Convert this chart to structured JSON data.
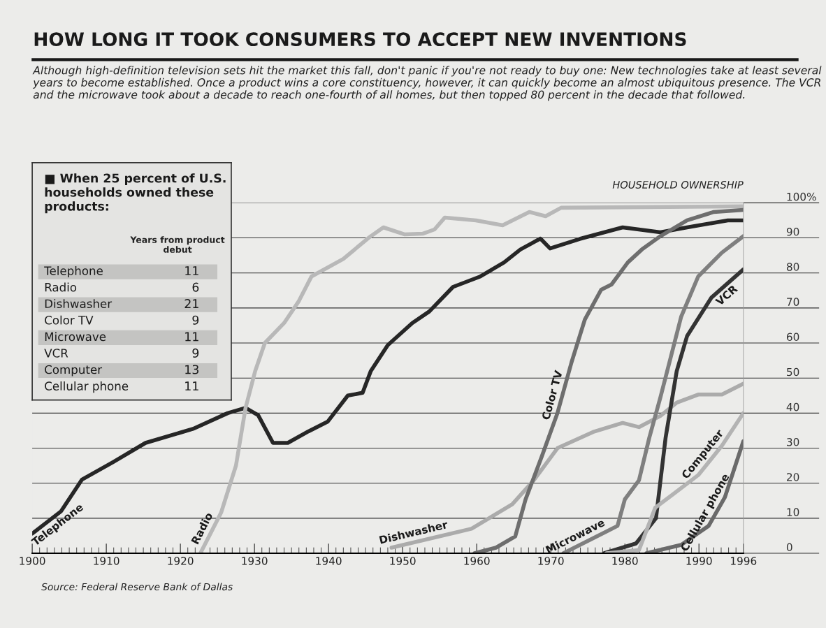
{
  "chart_data": [
    {
      "type": "line",
      "title": "HOW LONG IT TOOK CONSUMERS TO ACCEPT NEW INVENTIONS",
      "subtitle": "Although high-definition television sets hit the market this fall, don't panic if you're not ready to buy one: New technologies take at least several years to become established. Once a product wins a core constituency, however, it can quickly become an almost ubiquitous presence. The VCR and the microwave took about a decade to reach one-fourth of all homes, but then topped 80 percent in the decade that followed.",
      "ylabel": "HOUSEHOLD OWNERSHIP",
      "xlim": [
        1900,
        1996
      ],
      "xticks": [
        1900,
        1910,
        1920,
        1930,
        1940,
        1950,
        1960,
        1970,
        1980,
        1990,
        1996
      ],
      "ylim": [
        0,
        100
      ],
      "yticks": [
        0,
        10,
        20,
        30,
        40,
        50,
        60,
        70,
        80,
        90,
        {
          "value": 100,
          "label": "100%"
        }
      ],
      "grid": "y",
      "marker": "none",
      "line_style": "solid",
      "annotations": [
        "Source: Federal Reserve Bank of Dallas"
      ],
      "series": [
        {
          "name": "Telephone",
          "color": "#262626",
          "x": [
            1900,
            1903.9,
            1906.7,
            1910.9,
            1915.3,
            1921.7,
            1926.4,
            1928.8,
            1930.5,
            1932.5,
            1934.5,
            1937.3,
            1939.9,
            1942.6,
            1944.6,
            1945.7,
            1948,
            1951.3,
            1953.6,
            1956.8,
            1960.5,
            1963.7,
            1965.9,
            1968.6,
            1969.9,
            1973.9,
            1979.7,
            1984.8,
            1988.4,
            1993.9,
            1996
          ],
          "values": [
            5.6,
            12,
            21,
            26,
            31.5,
            35.5,
            40,
            41.5,
            39.4,
            31.5,
            31.5,
            34.8,
            37.6,
            45,
            45.8,
            52,
            59.4,
            65.7,
            69,
            76,
            79,
            83,
            86.7,
            89.8,
            87,
            89.7,
            93,
            91.6,
            93,
            95,
            95
          ]
        },
        {
          "name": "Radio",
          "color": "#b8b8b8",
          "x": [
            1922.7,
            1925.5,
            1927.5,
            1928.8,
            1930.1,
            1931.4,
            1934,
            1936,
            1937.7,
            1942,
            1945.4,
            1947.4,
            1950.3,
            1952.7,
            1954.3,
            1955.7,
            1959.9,
            1963.5,
            1967.1,
            1969.3,
            1971.4,
            1996
          ],
          "values": [
            0,
            11.6,
            25,
            41.5,
            52,
            60,
            65.7,
            72,
            79,
            84,
            90,
            93,
            91,
            91.2,
            92.4,
            95.8,
            95,
            93.6,
            97.4,
            96.2,
            98.6,
            99
          ]
        },
        {
          "name": "Dishwasher",
          "color": "#ababab",
          "x": [
            1948.5,
            1959.3,
            1964.8,
            1967.7,
            1970.9,
            1975.7,
            1979.7,
            1981.9,
            1984.8,
            1987,
            1989.9,
            1993.1,
            1996
          ],
          "values": [
            1.6,
            7,
            14,
            20.8,
            30,
            34.6,
            37.2,
            36,
            39.2,
            43,
            45.3,
            45.3,
            48.4
          ]
        },
        {
          "name": "Color TV",
          "color": "#6e6e6e",
          "x": [
            1959.7,
            1962.6,
            1965.2,
            1966.6,
            1968.8,
            1970.9,
            1972.8,
            1974.6,
            1976.8,
            1978.2,
            1980.4,
            1982.3,
            1984.8,
            1988.4,
            1992,
            1996
          ],
          "values": [
            0,
            1.6,
            4.8,
            15.4,
            27.7,
            40,
            54.5,
            66.7,
            75.2,
            76.7,
            83,
            86.7,
            90.5,
            95,
            97.4,
            98
          ]
        },
        {
          "name": "Microwave",
          "color": "#7f7f7f",
          "x": [
            1971.7,
            1979,
            1980,
            1981.9,
            1983.3,
            1984.8,
            1986.2,
            1987.6,
            1989.9,
            1993.1,
            1996
          ],
          "values": [
            0,
            7.8,
            15.4,
            20.8,
            33,
            44.5,
            56,
            67.5,
            79,
            85.8,
            90.5
          ]
        },
        {
          "name": "VCR",
          "color": "#333333",
          "x": [
            1977.2,
            1981.5,
            1984.2,
            1985.5,
            1987,
            1988.4,
            1991.7,
            1996
          ],
          "values": [
            0,
            2.8,
            10,
            33,
            52,
            62,
            73,
            81
          ]
        },
        {
          "name": "Computer",
          "color": "#b3b3b3",
          "x": [
            1977.5,
            1981.9,
            1984.1,
            1986.6,
            1989.9,
            1993.1,
            1996
          ],
          "values": [
            0,
            0.9,
            13,
            17,
            22.3,
            30.7,
            40
          ]
        },
        {
          "name": "Cellular phone",
          "color": "#6a6a6a",
          "x": [
            1982.9,
            1987.6,
            1991.3,
            1993.5,
            1996
          ],
          "values": [
            0,
            2.4,
            7.8,
            16,
            32
          ]
        }
      ]
    },
    {
      "type": "other",
      "title": "■ When 25 percent of U.S. households owned these products:",
      "subtitle": "Years from product debut",
      "categories": [
        "Telephone",
        "Radio",
        "Dishwasher",
        "Color TV",
        "Microwave",
        "VCR",
        "Computer",
        "Cellular phone"
      ],
      "values": [
        11,
        6,
        21,
        9,
        11,
        9,
        13,
        11
      ],
      "data_labels": true
    }
  ]
}
